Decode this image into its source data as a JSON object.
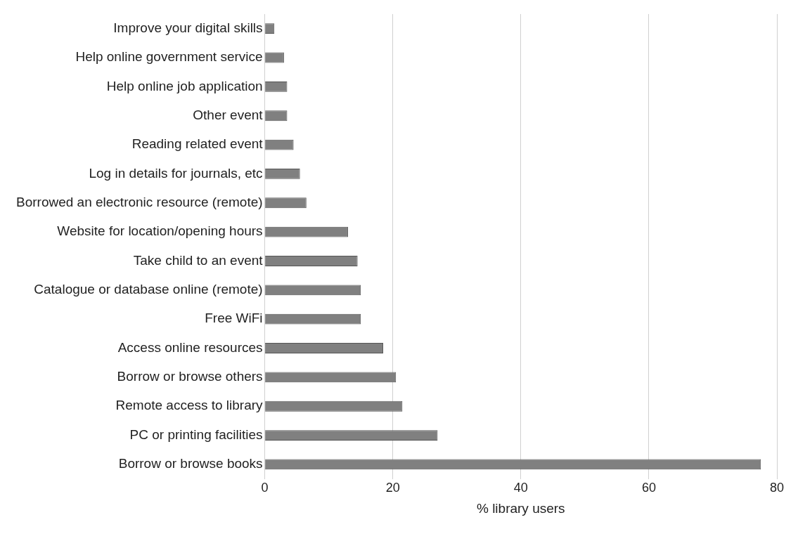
{
  "chart_data": {
    "type": "bar",
    "orientation": "horizontal",
    "xlabel": "% library users",
    "categories": [
      "Improve your digital skills",
      "Help online government service",
      "Help online job application",
      "Other event",
      "Reading related event",
      "Log in details for journals, etc",
      "Borrowed an electronic resource (remote)",
      "Website for location/opening hours",
      "Take child to an event",
      "Catalogue or database online (remote)",
      "Free WiFi",
      "Access online resources",
      "Borrow or browse others",
      "Remote access to library",
      "PC or printing facilities",
      "Borrow or browse books"
    ],
    "values": [
      1.5,
      3,
      3.5,
      3.5,
      4.5,
      5.5,
      6.5,
      13,
      14.5,
      15,
      15,
      18.5,
      20.5,
      21.5,
      27,
      77.5
    ],
    "color": "#808080",
    "xlim": [
      0,
      80
    ],
    "xticks": [
      0,
      20,
      40,
      60,
      80
    ],
    "grid": "x"
  }
}
